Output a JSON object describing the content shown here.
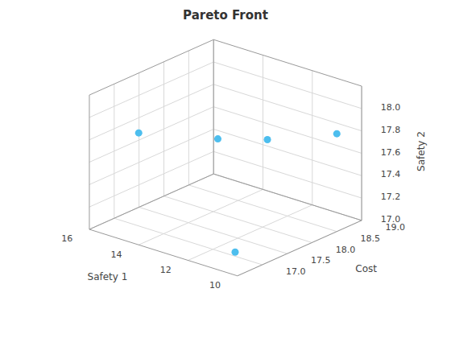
{
  "chart_data": {
    "type": "scatter3d",
    "title": "Pareto Front",
    "xlabel": "Safety 1",
    "ylabel": "Cost",
    "zlabel": "Safety 2",
    "x": [
      14.0,
      11.8,
      11.0,
      10.2,
      11.2
    ],
    "y": [
      16.5,
      17.0,
      17.6,
      18.6,
      17.05
    ],
    "z": [
      18.0,
      18.0,
      17.93,
      17.84,
      17.02
    ],
    "xlim": [
      16.0,
      10.0
    ],
    "xticks": [
      10,
      12,
      14,
      16
    ],
    "ylim": [
      16.5,
      19.0
    ],
    "yticks": [
      {
        "value": 17.0,
        "label": "17.0"
      },
      17.5,
      {
        "value": 18.0,
        "label": "18.0"
      },
      18.5,
      {
        "value": 19.0,
        "label": "19.0"
      }
    ],
    "zlim": [
      17.0,
      18.2
    ],
    "zticks": [
      {
        "value": 17.0,
        "label": "17.0"
      },
      17.2,
      17.4,
      17.6,
      17.8,
      {
        "value": 18.0,
        "label": "18.0"
      }
    ],
    "color": "#4DBEEE",
    "grid": true
  }
}
